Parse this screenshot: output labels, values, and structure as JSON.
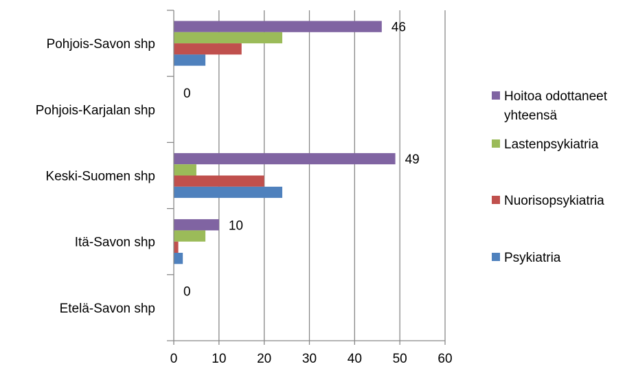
{
  "chart_data": {
    "type": "bar",
    "orientation": "horizontal",
    "categories": [
      "Pohjois-Savon shp",
      "Pohjois-Karjalan shp",
      "Keski-Suomen shp",
      "Itä-Savon shp",
      "Etelä-Savon shp"
    ],
    "series": [
      {
        "name": "Hoitoa odottaneet yhteensä",
        "color": "#8064a2",
        "values": [
          46,
          0,
          49,
          10,
          0
        ]
      },
      {
        "name": "Lastenpsykiatria",
        "color": "#9bbb59",
        "values": [
          24,
          0,
          5,
          7,
          0
        ]
      },
      {
        "name": "Nuorisopsykiatria",
        "color": "#c0504d",
        "values": [
          15,
          0,
          20,
          1,
          0
        ]
      },
      {
        "name": "Psykiatria",
        "color": "#4f81bd",
        "values": [
          7,
          0,
          24,
          2,
          0
        ]
      }
    ],
    "data_labels": {
      "series": "Hoitoa odottaneet yhteensä",
      "values": [
        "46",
        "0",
        "49",
        "10",
        "0"
      ]
    },
    "legend_entries": [
      {
        "lines": [
          "Hoitoa odottaneet",
          "yhteensä"
        ],
        "color": "#8064a2"
      },
      {
        "lines": [
          "Lastenpsykiatria"
        ],
        "color": "#9bbb59"
      },
      {
        "lines": [
          "Nuorisopsykiatria"
        ],
        "color": "#c0504d"
      },
      {
        "lines": [
          "Psykiatria"
        ],
        "color": "#4f81bd"
      }
    ],
    "x_ticks": [
      "0",
      "10",
      "20",
      "30",
      "40",
      "50",
      "60"
    ],
    "xlim": [
      0,
      60
    ],
    "grid": "vertical",
    "legend_position": "right",
    "title": "",
    "xlabel": "",
    "ylabel": ""
  }
}
